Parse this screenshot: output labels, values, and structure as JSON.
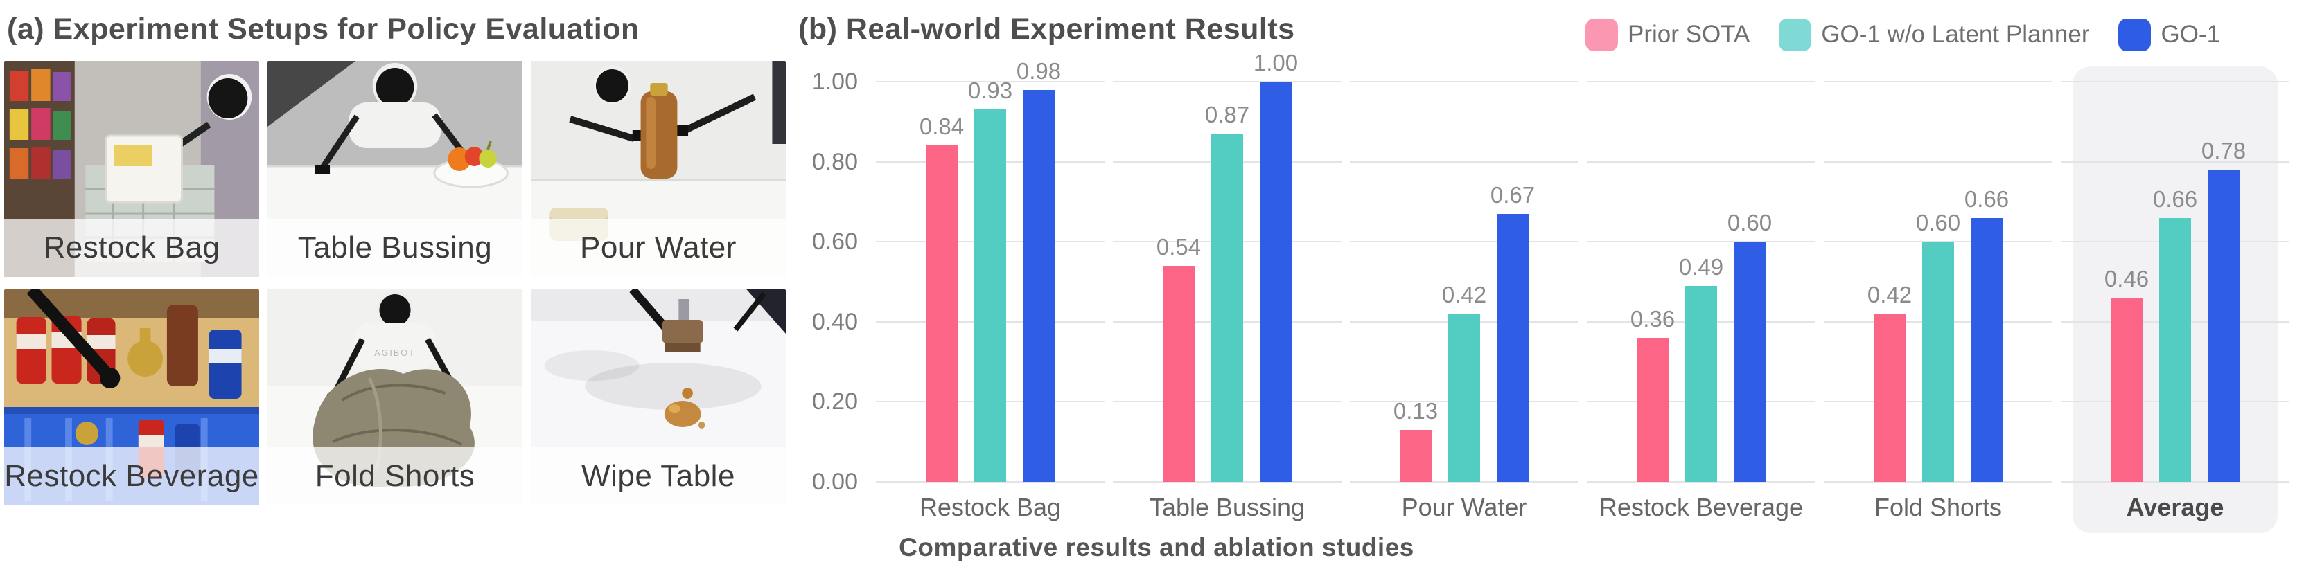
{
  "panel_a": {
    "title": "(a) Experiment Setups for Policy Evaluation",
    "tiles": [
      {
        "label": "Restock Bag"
      },
      {
        "label": "Table Bussing"
      },
      {
        "label": "Pour Water"
      },
      {
        "label": "Restock Beverage"
      },
      {
        "label": "Fold Shorts",
        "overlay_text": "AGIBOT"
      },
      {
        "label": "Wipe Table"
      }
    ]
  },
  "panel_b": {
    "title": "(b) Real-world Experiment Results",
    "caption": "Comparative results and ablation studies",
    "legend": [
      {
        "label": "Prior SOTA",
        "color": "#fc97b2"
      },
      {
        "label": "GO-1 w/o Latent Planner",
        "color": "#7fdad6"
      },
      {
        "label": "GO-1",
        "color": "#2f5ce5"
      }
    ]
  },
  "chart_data": {
    "type": "bar",
    "title": "(b) Real-world Experiment Results",
    "categories": [
      "Restock Bag",
      "Table Bussing",
      "Pour Water",
      "Restock Beverage",
      "Fold Shorts",
      "Average"
    ],
    "series": [
      {
        "name": "Prior SOTA",
        "color": "#fd6587",
        "values": [
          0.84,
          0.54,
          0.13,
          0.36,
          0.42,
          0.46
        ]
      },
      {
        "name": "GO-1 w/o Latent Planner",
        "color": "#53cdc2",
        "values": [
          0.93,
          0.87,
          0.42,
          0.49,
          0.6,
          0.66
        ]
      },
      {
        "name": "GO-1",
        "color": "#2f5de5",
        "values": [
          0.98,
          1.0,
          0.67,
          0.6,
          0.66,
          0.78
        ]
      }
    ],
    "xlabel": "",
    "ylabel": "",
    "ylim": [
      0,
      1.0
    ],
    "yticks": [
      "0.00",
      "0.20",
      "0.40",
      "0.60",
      "0.80",
      "1.00"
    ],
    "grid": "horizontal, segmented per category panel",
    "legend_position": "top-right",
    "highlighted_category": "Average",
    "value_label_format": "0.00"
  }
}
